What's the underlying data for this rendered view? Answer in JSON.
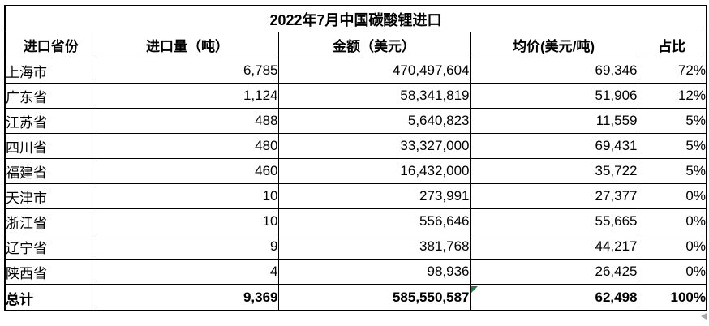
{
  "chart_data": {
    "type": "table",
    "title": "2022年7月中国碳酸锂进口",
    "columns": [
      "进口省份",
      "进口量（吨）",
      "金额（美元）",
      "均价(美元/吨)",
      "占比"
    ],
    "rows": [
      {
        "province": "上海市",
        "volume": "6,785",
        "amount": "470,497,604",
        "avg_price": "69,346",
        "share": "72%"
      },
      {
        "province": "广东省",
        "volume": "1,124",
        "amount": "58,341,819",
        "avg_price": "51,906",
        "share": "12%"
      },
      {
        "province": "江苏省",
        "volume": "488",
        "amount": "5,640,823",
        "avg_price": "11,559",
        "share": "5%"
      },
      {
        "province": "四川省",
        "volume": "480",
        "amount": "33,327,000",
        "avg_price": "69,431",
        "share": "5%"
      },
      {
        "province": "福建省",
        "volume": "460",
        "amount": "16,432,000",
        "avg_price": "35,722",
        "share": "5%"
      },
      {
        "province": "天津市",
        "volume": "10",
        "amount": "273,991",
        "avg_price": "27,377",
        "share": "0%"
      },
      {
        "province": "浙江省",
        "volume": "10",
        "amount": "556,646",
        "avg_price": "55,665",
        "share": "0%"
      },
      {
        "province": "辽宁省",
        "volume": "9",
        "amount": "381,768",
        "avg_price": "44,217",
        "share": "0%"
      },
      {
        "province": "陕西省",
        "volume": "4",
        "amount": "98,936",
        "avg_price": "26,425",
        "share": "0%"
      }
    ],
    "total": {
      "label": "总计",
      "volume": "9,369",
      "amount": "585,550,587",
      "avg_price": "62,498",
      "share": "100%"
    }
  },
  "colors": {
    "background": "#ffffff",
    "border": "#000000",
    "text": "#000000",
    "green_corner_marker": "#17803d",
    "cursor_artifact": "#a6a6a6"
  }
}
